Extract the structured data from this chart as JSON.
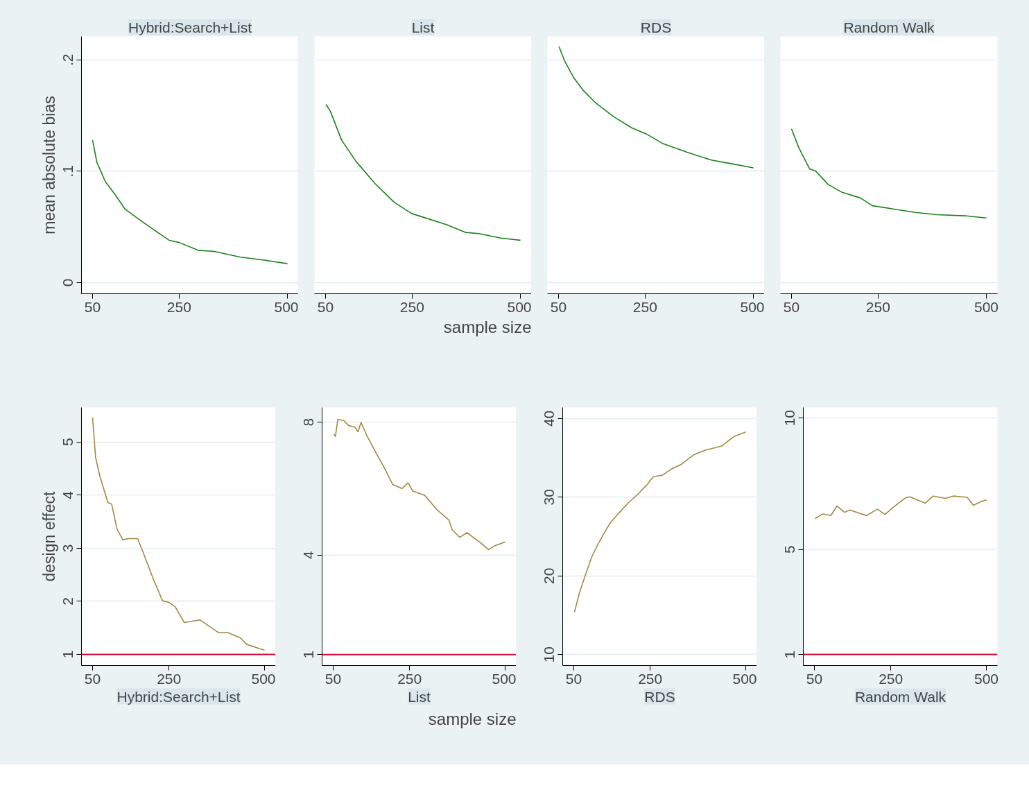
{
  "chart_data": [
    {
      "type": "line",
      "title": "Hybrid:Search+List",
      "ylabel": "mean absolute bias",
      "color": "#1a821a",
      "grid": "y",
      "xlim": [
        24.4,
        525.6
      ],
      "xticks": [
        50,
        250,
        500
      ],
      "ylim": [
        -0.01,
        0.221
      ],
      "yticks": [
        0,
        {
          "value": 0.1,
          "label": ".1"
        },
        {
          "value": 0.2,
          "label": ".2"
        }
      ],
      "x": [
        50,
        60,
        79,
        102,
        125,
        153,
        197,
        227,
        250,
        294,
        331,
        390,
        449,
        500
      ],
      "values": [
        0.128,
        0.108,
        0.091,
        0.079,
        0.066,
        0.058,
        0.046,
        0.038,
        0.036,
        0.029,
        0.028,
        0.023,
        0.02,
        0.017
      ]
    },
    {
      "type": "line",
      "title": "List",
      "xlabel": "sample size",
      "color": "#1a821a",
      "grid": "y",
      "tick_labels": "x",
      "xlim": [
        24.4,
        525.6
      ],
      "xticks": [
        50,
        250,
        500
      ],
      "ylim": [
        -0.01,
        0.221
      ],
      "yticks": [
        0,
        0.1,
        0.2
      ],
      "x": [
        51,
        61,
        87,
        120,
        164,
        209,
        249,
        330,
        374,
        404,
        455,
        500
      ],
      "values": [
        0.16,
        0.154,
        0.128,
        0.109,
        0.089,
        0.072,
        0.062,
        0.052,
        0.045,
        0.044,
        0.04,
        0.038
      ]
    },
    {
      "type": "line",
      "title": "RDS",
      "color": "#1a821a",
      "grid": "y",
      "tick_labels": "x",
      "xlim": [
        24.4,
        525.6
      ],
      "xticks": [
        50,
        250,
        500
      ],
      "ylim": [
        -0.01,
        0.221
      ],
      "yticks": [
        0,
        0.1,
        0.2
      ],
      "x": [
        51,
        64,
        85,
        106,
        134,
        177,
        219,
        255,
        290,
        347,
        403,
        446,
        500
      ],
      "values": [
        0.212,
        0.199,
        0.184,
        0.173,
        0.162,
        0.149,
        0.139,
        0.133,
        0.125,
        0.117,
        0.11,
        0.107,
        0.103
      ]
    },
    {
      "type": "line",
      "title": "Random Walk",
      "color": "#1a821a",
      "grid": "y",
      "tick_labels": "x",
      "xlim": [
        24.4,
        525.6
      ],
      "xticks": [
        50,
        250,
        500
      ],
      "ylim": [
        -0.01,
        0.221
      ],
      "yticks": [
        0,
        0.1,
        0.2
      ],
      "x": [
        50,
        67,
        92,
        106,
        135,
        167,
        209,
        237,
        287,
        336,
        386,
        450,
        500
      ],
      "values": [
        0.138,
        0.121,
        0.102,
        0.1,
        0.088,
        0.081,
        0.076,
        0.069,
        0.066,
        0.063,
        0.061,
        0.06,
        0.058
      ]
    },
    {
      "type": "line",
      "title": "Hybrid:Search+List",
      "ylabel": "design effect",
      "color": "#a08a40",
      "grid": "y",
      "xlim": [
        21,
        529
      ],
      "xticks": [
        50,
        250,
        500
      ],
      "ylim": [
        0.79,
        5.65
      ],
      "yticks": [
        1,
        2,
        3,
        4,
        5
      ],
      "ref_lines": [
        {
          "axis": "y",
          "value": 1,
          "color": "#c8103c"
        }
      ],
      "x": [
        50,
        58,
        69,
        90,
        100,
        114,
        129,
        144,
        168,
        184,
        209,
        233,
        250,
        266,
        290,
        331,
        380,
        404,
        437,
        453,
        486,
        500
      ],
      "values": [
        5.46,
        4.71,
        4.36,
        3.86,
        3.83,
        3.36,
        3.16,
        3.18,
        3.18,
        2.89,
        2.42,
        2.01,
        1.98,
        1.9,
        1.6,
        1.65,
        1.41,
        1.41,
        1.31,
        1.19,
        1.11,
        1.08
      ]
    },
    {
      "type": "line",
      "title": "List",
      "xlabel": "sample size",
      "color": "#a08a40",
      "grid": "y",
      "xlim": [
        21,
        529
      ],
      "xticks": [
        50,
        250,
        500
      ],
      "ylim": [
        0.67,
        8.44
      ],
      "yticks": [
        1,
        4,
        8
      ],
      "ref_lines": [
        {
          "axis": "y",
          "value": 1,
          "color": "#c8103c"
        }
      ],
      "x": [
        52,
        56,
        62,
        78,
        90,
        107,
        115,
        123,
        137,
        161,
        183,
        206,
        230,
        246,
        258,
        290,
        321,
        353,
        361,
        381,
        400,
        433,
        457,
        473,
        500
      ],
      "values": [
        7.64,
        7.57,
        8.08,
        8.05,
        7.9,
        7.85,
        7.71,
        7.99,
        7.62,
        7.1,
        6.64,
        6.12,
        6.0,
        6.17,
        5.93,
        5.79,
        5.37,
        5.05,
        4.77,
        4.53,
        4.67,
        4.39,
        4.16,
        4.28,
        4.39
      ]
    },
    {
      "type": "line",
      "title": "RDS",
      "color": "#a08a40",
      "grid": "y",
      "xlim": [
        21,
        529
      ],
      "xticks": [
        50,
        250,
        500
      ],
      "ylim": [
        8.6,
        41.4
      ],
      "yticks": [
        10,
        20,
        30,
        40
      ],
      "x": [
        52,
        64,
        81,
        97,
        113,
        128,
        145,
        170,
        193,
        218,
        242,
        258,
        282,
        306,
        332,
        364,
        396,
        437,
        469,
        500
      ],
      "values": [
        15.4,
        17.7,
        20.2,
        22.4,
        24.0,
        25.3,
        26.7,
        28.1,
        29.3,
        30.4,
        31.6,
        32.6,
        32.8,
        33.6,
        34.2,
        35.4,
        36.0,
        36.5,
        37.7,
        38.3
      ]
    },
    {
      "type": "line",
      "title": "Random Walk",
      "color": "#a08a40",
      "grid": "y",
      "xlim": [
        21,
        529
      ],
      "xticks": [
        50,
        250,
        500
      ],
      "ylim": [
        0.58,
        10.4
      ],
      "yticks": [
        1,
        5,
        10
      ],
      "ref_lines": [
        {
          "axis": "y",
          "value": 1,
          "color": "#c8103c"
        }
      ],
      "x": [
        52,
        72,
        93,
        109,
        129,
        142,
        174,
        186,
        215,
        235,
        255,
        288,
        300,
        340,
        361,
        393,
        413,
        450,
        466,
        486,
        500
      ],
      "values": [
        6.17,
        6.35,
        6.29,
        6.65,
        6.41,
        6.5,
        6.35,
        6.29,
        6.53,
        6.33,
        6.59,
        6.96,
        7.0,
        6.76,
        7.03,
        6.94,
        7.03,
        6.98,
        6.68,
        6.82,
        6.88
      ]
    }
  ]
}
